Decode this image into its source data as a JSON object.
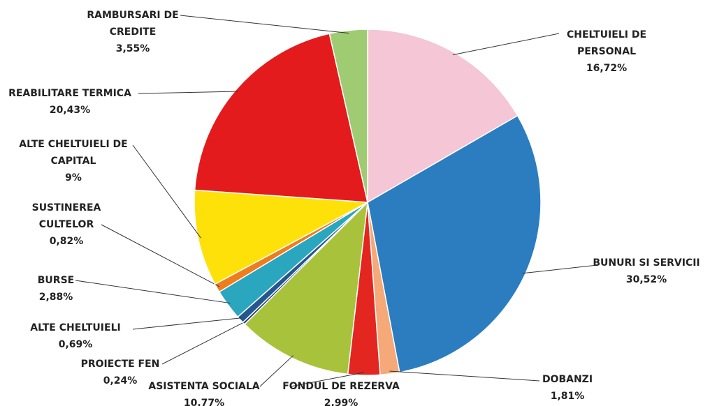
{
  "chart_data": {
    "type": "pie",
    "categories": [
      "CHELTUIELI DE PERSONAL",
      "BUNURI SI SERVICII",
      "DOBANZI",
      "FONDUL DE REZERVA",
      "ASISTENTA SOCIALA",
      "PROIECTE FEN",
      "ALTE CHELTUIELI",
      "BURSE",
      "SUSTINEREA CULTELOR",
      "ALTE CHELTUIELI DE CAPITAL",
      "REABILITARE TERMICA",
      "RAMBURSARI DE CREDITE"
    ],
    "values": [
      16.72,
      30.52,
      1.81,
      2.99,
      10.77,
      0.24,
      0.69,
      2.88,
      0.82,
      9,
      20.43,
      3.55
    ],
    "value_labels": [
      "16,72%",
      "30,52%",
      "1,81%",
      "2,99%",
      "10,77%",
      "0,24%",
      "0,69%",
      "2,88%",
      "0,82%",
      "9%",
      "20,43%",
      "3,55%"
    ],
    "colors": [
      "#f4c6d6",
      "#2b7dc0",
      "#f5a878",
      "#e3261f",
      "#a9c23c",
      "#1e3c78",
      "#23578f",
      "#2aa6bf",
      "#ef7d1c",
      "#ffe10a",
      "#e41b1c",
      "#9fcb73"
    ]
  }
}
